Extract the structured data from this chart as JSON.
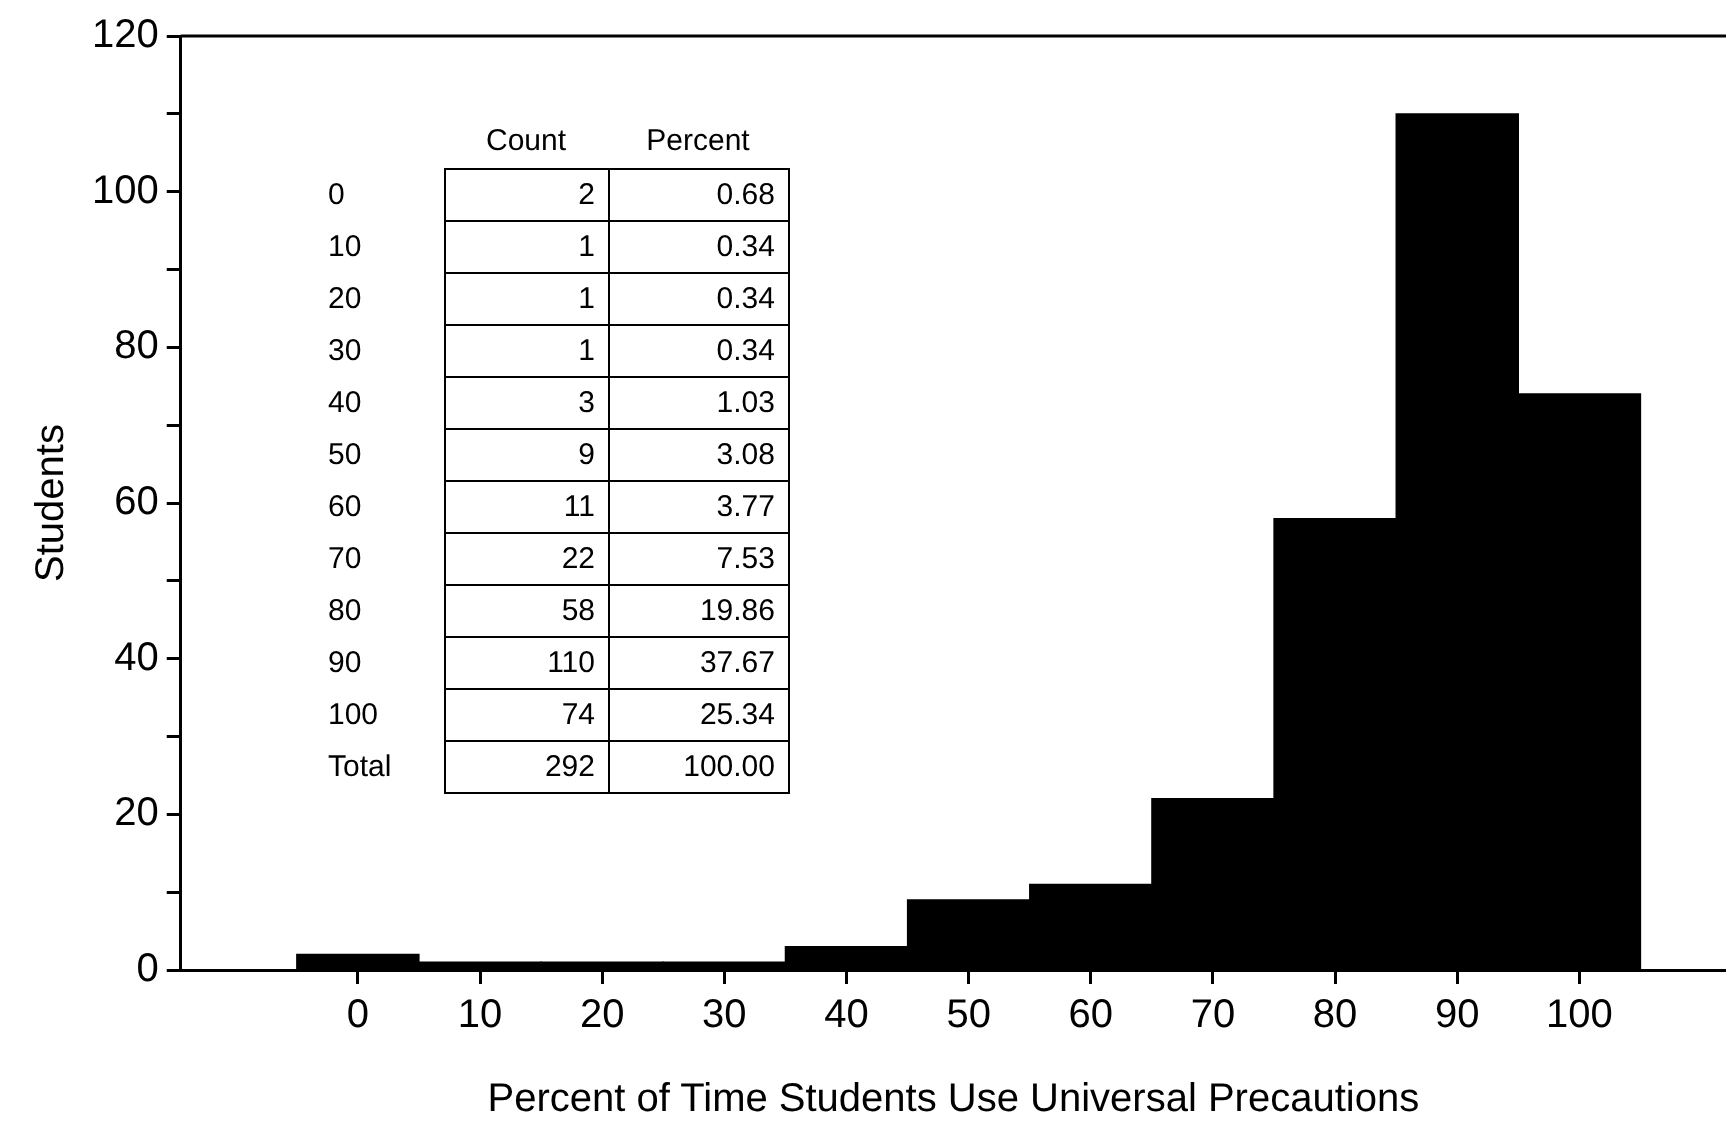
{
  "chart_data": {
    "type": "histogram",
    "xlabel": "Percent of Time Students Use Universal Precautions",
    "ylabel": "Students",
    "bins": [
      -5,
      5,
      15,
      25,
      35,
      45,
      55,
      65,
      75,
      85,
      95,
      105
    ],
    "values": [
      2,
      1,
      1,
      1,
      3,
      9,
      11,
      22,
      58,
      110,
      74
    ],
    "color": "#000000",
    "xlim": [
      -14.5,
      112
    ],
    "xticks": [
      0,
      10,
      20,
      30,
      40,
      50,
      60,
      70,
      80,
      90,
      100
    ],
    "ylim": [
      0,
      120
    ],
    "yticks": [
      0,
      {
        "value": 10,
        "label": null
      },
      20,
      {
        "value": 30,
        "label": null
      },
      40,
      {
        "value": 50,
        "label": null
      },
      60,
      {
        "value": 70,
        "label": null
      },
      80,
      {
        "value": 90,
        "label": null
      },
      100,
      {
        "value": 110,
        "label": null
      },
      120
    ],
    "grid": false,
    "legend": false,
    "annotations": [
      "Count",
      "Percent",
      "0",
      "2",
      "0.68",
      "10",
      "1",
      "0.34",
      "20",
      "1",
      "0.34",
      "30",
      "1",
      "0.34",
      "40",
      "3",
      "1.03",
      "50",
      "9",
      "3.08",
      "60",
      "11",
      "3.77",
      "70",
      "22",
      "7.53",
      "80",
      "58",
      "19.86",
      "90",
      "110",
      "37.67",
      "100",
      "74",
      "25.34",
      "Total",
      "292",
      "100.00"
    ]
  }
}
